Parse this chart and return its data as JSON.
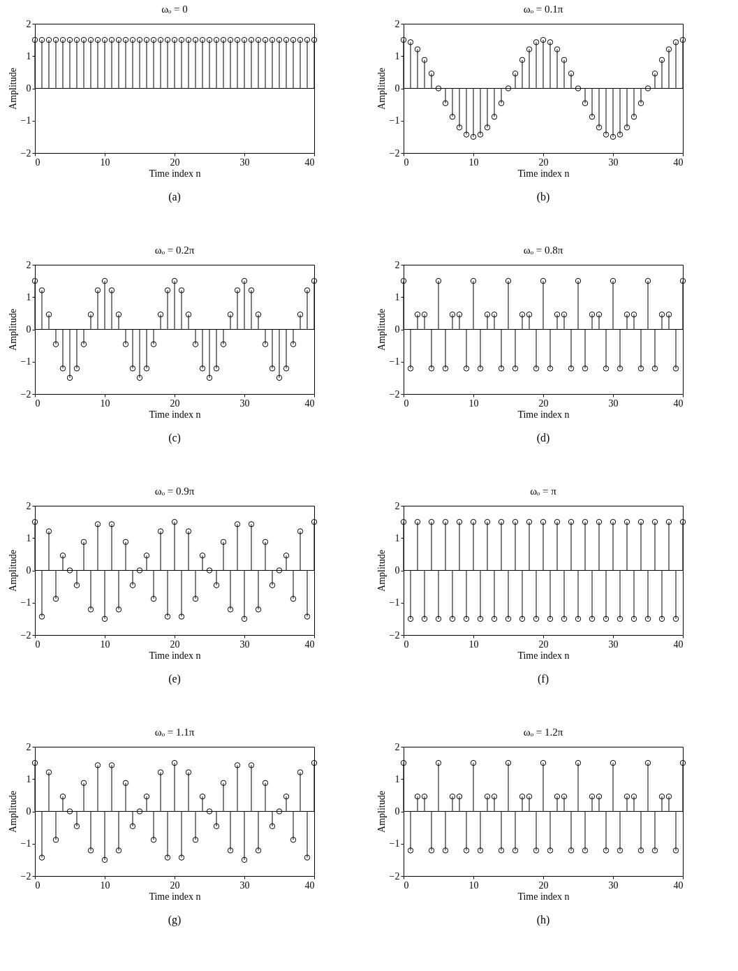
{
  "chart_data": [
    {
      "type": "lollipop",
      "title": "ωₒ = 0",
      "xlabel": "Time index n",
      "ylabel": "Amplitude",
      "annotations": [
        "(a)"
      ],
      "color": "#000000",
      "marker": "circle",
      "xlim": [
        0,
        40
      ],
      "xticks": [
        0,
        10,
        20,
        30,
        40
      ],
      "ylim": [
        -2,
        2
      ],
      "yticks": [
        -2,
        -1,
        0,
        1,
        2
      ],
      "ref_lines": [
        {
          "axis": "y",
          "value": 0
        }
      ],
      "x": [
        0,
        1,
        2,
        3,
        4,
        5,
        6,
        7,
        8,
        9,
        10,
        11,
        12,
        13,
        14,
        15,
        16,
        17,
        18,
        19,
        20,
        21,
        22,
        23,
        24,
        25,
        26,
        27,
        28,
        29,
        30,
        31,
        32,
        33,
        34,
        35,
        36,
        37,
        38,
        39,
        40
      ],
      "values": [
        1.5,
        1.5,
        1.5,
        1.5,
        1.5,
        1.5,
        1.5,
        1.5,
        1.5,
        1.5,
        1.5,
        1.5,
        1.5,
        1.5,
        1.5,
        1.5,
        1.5,
        1.5,
        1.5,
        1.5,
        1.5,
        1.5,
        1.5,
        1.5,
        1.5,
        1.5,
        1.5,
        1.5,
        1.5,
        1.5,
        1.5,
        1.5,
        1.5,
        1.5,
        1.5,
        1.5,
        1.5,
        1.5,
        1.5,
        1.5,
        1.5
      ]
    },
    {
      "type": "lollipop",
      "title": "ωₒ = 0.1π",
      "xlabel": "Time index n",
      "ylabel": "Amplitude",
      "annotations": [
        "(b)"
      ],
      "color": "#000000",
      "marker": "circle",
      "xlim": [
        0,
        40
      ],
      "xticks": [
        0,
        10,
        20,
        30,
        40
      ],
      "ylim": [
        -2,
        2
      ],
      "yticks": [
        -2,
        -1,
        0,
        1,
        2
      ],
      "ref_lines": [
        {
          "axis": "y",
          "value": 0
        }
      ],
      "x": [
        0,
        1,
        2,
        3,
        4,
        5,
        6,
        7,
        8,
        9,
        10,
        11,
        12,
        13,
        14,
        15,
        16,
        17,
        18,
        19,
        20,
        21,
        22,
        23,
        24,
        25,
        26,
        27,
        28,
        29,
        30,
        31,
        32,
        33,
        34,
        35,
        36,
        37,
        38,
        39,
        40
      ],
      "values": [
        1.5,
        1.43,
        1.21,
        0.88,
        0.46,
        0,
        -0.46,
        -0.88,
        -1.21,
        -1.43,
        -1.5,
        -1.43,
        -1.21,
        -0.88,
        -0.46,
        0,
        0.46,
        0.88,
        1.21,
        1.43,
        1.5,
        1.43,
        1.21,
        0.88,
        0.46,
        0,
        -0.46,
        -0.88,
        -1.21,
        -1.43,
        -1.5,
        -1.43,
        -1.21,
        -0.88,
        -0.46,
        0,
        0.46,
        0.88,
        1.21,
        1.43,
        1.5
      ]
    },
    {
      "type": "lollipop",
      "title": "ωₒ = 0.2π",
      "xlabel": "Time index n",
      "ylabel": "Amplitude",
      "annotations": [
        "(c)"
      ],
      "color": "#000000",
      "marker": "circle",
      "xlim": [
        0,
        40
      ],
      "xticks": [
        0,
        10,
        20,
        30,
        40
      ],
      "ylim": [
        -2,
        2
      ],
      "yticks": [
        -2,
        -1,
        0,
        1,
        2
      ],
      "ref_lines": [
        {
          "axis": "y",
          "value": 0
        }
      ],
      "x": [
        0,
        1,
        2,
        3,
        4,
        5,
        6,
        7,
        8,
        9,
        10,
        11,
        12,
        13,
        14,
        15,
        16,
        17,
        18,
        19,
        20,
        21,
        22,
        23,
        24,
        25,
        26,
        27,
        28,
        29,
        30,
        31,
        32,
        33,
        34,
        35,
        36,
        37,
        38,
        39,
        40
      ],
      "values": [
        1.5,
        1.21,
        0.46,
        -0.46,
        -1.21,
        -1.5,
        -1.21,
        -0.46,
        0.46,
        1.21,
        1.5,
        1.21,
        0.46,
        -0.46,
        -1.21,
        -1.5,
        -1.21,
        -0.46,
        0.46,
        1.21,
        1.5,
        1.21,
        0.46,
        -0.46,
        -1.21,
        -1.5,
        -1.21,
        -0.46,
        0.46,
        1.21,
        1.5,
        1.21,
        0.46,
        -0.46,
        -1.21,
        -1.5,
        -1.21,
        -0.46,
        0.46,
        1.21,
        1.5
      ]
    },
    {
      "type": "lollipop",
      "title": "ωₒ = 0.8π",
      "xlabel": "Time index n",
      "ylabel": "Amplitude",
      "annotations": [
        "(d)"
      ],
      "color": "#000000",
      "marker": "circle",
      "xlim": [
        0,
        40
      ],
      "xticks": [
        0,
        10,
        20,
        30,
        40
      ],
      "ylim": [
        -2,
        2
      ],
      "yticks": [
        -2,
        -1,
        0,
        1,
        2
      ],
      "ref_lines": [
        {
          "axis": "y",
          "value": 0
        }
      ],
      "x": [
        0,
        1,
        2,
        3,
        4,
        5,
        6,
        7,
        8,
        9,
        10,
        11,
        12,
        13,
        14,
        15,
        16,
        17,
        18,
        19,
        20,
        21,
        22,
        23,
        24,
        25,
        26,
        27,
        28,
        29,
        30,
        31,
        32,
        33,
        34,
        35,
        36,
        37,
        38,
        39,
        40
      ],
      "values": [
        1.5,
        -1.21,
        0.46,
        0.46,
        -1.21,
        1.5,
        -1.21,
        0.46,
        0.46,
        -1.21,
        1.5,
        -1.21,
        0.46,
        0.46,
        -1.21,
        1.5,
        -1.21,
        0.46,
        0.46,
        -1.21,
        1.5,
        -1.21,
        0.46,
        0.46,
        -1.21,
        1.5,
        -1.21,
        0.46,
        0.46,
        -1.21,
        1.5,
        -1.21,
        0.46,
        0.46,
        -1.21,
        1.5,
        -1.21,
        0.46,
        0.46,
        -1.21,
        1.5
      ]
    },
    {
      "type": "lollipop",
      "title": "ωₒ = 0.9π",
      "xlabel": "Time index n",
      "ylabel": "Amplitude",
      "annotations": [
        "(e)"
      ],
      "color": "#000000",
      "marker": "circle",
      "xlim": [
        0,
        40
      ],
      "xticks": [
        0,
        10,
        20,
        30,
        40
      ],
      "ylim": [
        -2,
        2
      ],
      "yticks": [
        -2,
        -1,
        0,
        1,
        2
      ],
      "ref_lines": [
        {
          "axis": "y",
          "value": 0
        }
      ],
      "x": [
        0,
        1,
        2,
        3,
        4,
        5,
        6,
        7,
        8,
        9,
        10,
        11,
        12,
        13,
        14,
        15,
        16,
        17,
        18,
        19,
        20,
        21,
        22,
        23,
        24,
        25,
        26,
        27,
        28,
        29,
        30,
        31,
        32,
        33,
        34,
        35,
        36,
        37,
        38,
        39,
        40
      ],
      "values": [
        1.5,
        -1.43,
        1.21,
        -0.88,
        0.46,
        0,
        -0.46,
        0.88,
        -1.21,
        1.43,
        -1.5,
        1.43,
        -1.21,
        0.88,
        -0.46,
        0,
        0.46,
        -0.88,
        1.21,
        -1.43,
        1.5,
        -1.43,
        1.21,
        -0.88,
        0.46,
        0,
        -0.46,
        0.88,
        -1.21,
        1.43,
        -1.5,
        1.43,
        -1.21,
        0.88,
        -0.46,
        0,
        0.46,
        -0.88,
        1.21,
        -1.43,
        1.5
      ]
    },
    {
      "type": "lollipop",
      "title": "ωₒ = π",
      "xlabel": "Time index n",
      "ylabel": "Amplitude",
      "annotations": [
        "(f)"
      ],
      "color": "#000000",
      "marker": "circle",
      "xlim": [
        0,
        40
      ],
      "xticks": [
        0,
        10,
        20,
        30,
        40
      ],
      "ylim": [
        -2,
        2
      ],
      "yticks": [
        -2,
        -1,
        0,
        1,
        2
      ],
      "ref_lines": [
        {
          "axis": "y",
          "value": 0
        }
      ],
      "x": [
        0,
        1,
        2,
        3,
        4,
        5,
        6,
        7,
        8,
        9,
        10,
        11,
        12,
        13,
        14,
        15,
        16,
        17,
        18,
        19,
        20,
        21,
        22,
        23,
        24,
        25,
        26,
        27,
        28,
        29,
        30,
        31,
        32,
        33,
        34,
        35,
        36,
        37,
        38,
        39,
        40
      ],
      "values": [
        1.5,
        -1.5,
        1.5,
        -1.5,
        1.5,
        -1.5,
        1.5,
        -1.5,
        1.5,
        -1.5,
        1.5,
        -1.5,
        1.5,
        -1.5,
        1.5,
        -1.5,
        1.5,
        -1.5,
        1.5,
        -1.5,
        1.5,
        -1.5,
        1.5,
        -1.5,
        1.5,
        -1.5,
        1.5,
        -1.5,
        1.5,
        -1.5,
        1.5,
        -1.5,
        1.5,
        -1.5,
        1.5,
        -1.5,
        1.5,
        -1.5,
        1.5,
        -1.5,
        1.5
      ]
    },
    {
      "type": "lollipop",
      "title": "ωₒ = 1.1π",
      "xlabel": "Time index n",
      "ylabel": "Amplitude",
      "annotations": [
        "(g)"
      ],
      "color": "#000000",
      "marker": "circle",
      "xlim": [
        0,
        40
      ],
      "xticks": [
        0,
        10,
        20,
        30,
        40
      ],
      "ylim": [
        -2,
        2
      ],
      "yticks": [
        -2,
        -1,
        0,
        1,
        2
      ],
      "ref_lines": [
        {
          "axis": "y",
          "value": 0
        }
      ],
      "x": [
        0,
        1,
        2,
        3,
        4,
        5,
        6,
        7,
        8,
        9,
        10,
        11,
        12,
        13,
        14,
        15,
        16,
        17,
        18,
        19,
        20,
        21,
        22,
        23,
        24,
        25,
        26,
        27,
        28,
        29,
        30,
        31,
        32,
        33,
        34,
        35,
        36,
        37,
        38,
        39,
        40
      ],
      "values": [
        1.5,
        -1.43,
        1.21,
        -0.88,
        0.46,
        0,
        -0.46,
        0.88,
        -1.21,
        1.43,
        -1.5,
        1.43,
        -1.21,
        0.88,
        -0.46,
        0,
        0.46,
        -0.88,
        1.21,
        -1.43,
        1.5,
        -1.43,
        1.21,
        -0.88,
        0.46,
        0,
        -0.46,
        0.88,
        -1.21,
        1.43,
        -1.5,
        1.43,
        -1.21,
        0.88,
        -0.46,
        0,
        0.46,
        -0.88,
        1.21,
        -1.43,
        1.5
      ]
    },
    {
      "type": "lollipop",
      "title": "ωₒ = 1.2π",
      "xlabel": "Time index n",
      "ylabel": "Amplitude",
      "annotations": [
        "(h)"
      ],
      "color": "#000000",
      "marker": "circle",
      "xlim": [
        0,
        40
      ],
      "xticks": [
        0,
        10,
        20,
        30,
        40
      ],
      "ylim": [
        -2,
        2
      ],
      "yticks": [
        -2,
        -1,
        0,
        1,
        2
      ],
      "ref_lines": [
        {
          "axis": "y",
          "value": 0
        }
      ],
      "x": [
        0,
        1,
        2,
        3,
        4,
        5,
        6,
        7,
        8,
        9,
        10,
        11,
        12,
        13,
        14,
        15,
        16,
        17,
        18,
        19,
        20,
        21,
        22,
        23,
        24,
        25,
        26,
        27,
        28,
        29,
        30,
        31,
        32,
        33,
        34,
        35,
        36,
        37,
        38,
        39,
        40
      ],
      "values": [
        1.5,
        -1.21,
        0.46,
        0.46,
        -1.21,
        1.5,
        -1.21,
        0.46,
        0.46,
        -1.21,
        1.5,
        -1.21,
        0.46,
        0.46,
        -1.21,
        1.5,
        -1.21,
        0.46,
        0.46,
        -1.21,
        1.5,
        -1.21,
        0.46,
        0.46,
        -1.21,
        1.5,
        -1.21,
        0.46,
        0.46,
        -1.21,
        1.5,
        -1.21,
        0.46,
        0.46,
        -1.21,
        1.5,
        -1.21,
        0.46,
        0.46,
        -1.21,
        1.5
      ]
    }
  ]
}
